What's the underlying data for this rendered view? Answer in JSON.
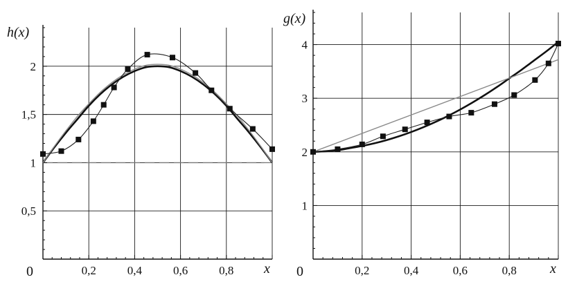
{
  "chart_data": [
    {
      "type": "line",
      "ylabel": "h(x)",
      "xlabel": "x",
      "origin_label": "0",
      "xlim": [
        0,
        1
      ],
      "ylim": [
        0,
        2.4
      ],
      "x_ticks": [
        "0,2",
        "0,4",
        "0,6",
        "0,8"
      ],
      "x_tick_values": [
        0.2,
        0.4,
        0.6,
        0.8
      ],
      "y_ticks": [
        "0,5",
        "1",
        "1,5",
        "2"
      ],
      "y_tick_values": [
        0.5,
        1,
        1.5,
        2
      ],
      "grid": true,
      "reference_line": {
        "y": 1,
        "style": "dashed"
      },
      "series": [
        {
          "style": "thick-black",
          "x": [
            0,
            0.05,
            0.1,
            0.15,
            0.2,
            0.25,
            0.3,
            0.35,
            0.4,
            0.45,
            0.5,
            0.55,
            0.6,
            0.65,
            0.7,
            0.75,
            0.8,
            0.85,
            0.9,
            0.95,
            1
          ],
          "values": [
            1.0,
            1.16,
            1.31,
            1.45,
            1.59,
            1.71,
            1.81,
            1.89,
            1.95,
            1.99,
            2.0,
            1.99,
            1.95,
            1.89,
            1.81,
            1.71,
            1.59,
            1.45,
            1.31,
            1.16,
            1.0
          ]
        },
        {
          "style": "thin-gray",
          "x": [
            0,
            0.05,
            0.1,
            0.15,
            0.2,
            0.25,
            0.3,
            0.35,
            0.4,
            0.45,
            0.5,
            0.55,
            0.6,
            0.65,
            0.7,
            0.75,
            0.8,
            0.85,
            0.9,
            0.95,
            1
          ],
          "values": [
            1.0,
            1.17,
            1.33,
            1.48,
            1.61,
            1.73,
            1.83,
            1.91,
            1.97,
            2.01,
            2.02,
            2.01,
            1.97,
            1.91,
            1.83,
            1.73,
            1.61,
            1.48,
            1.33,
            1.17,
            1.0
          ]
        },
        {
          "style": "thin-black-markers",
          "x": [
            0.0,
            0.08,
            0.155,
            0.22,
            0.265,
            0.31,
            0.37,
            0.455,
            0.565,
            0.665,
            0.735,
            0.815,
            0.915,
            1.0
          ],
          "values": [
            1.09,
            1.12,
            1.24,
            1.43,
            1.6,
            1.78,
            1.97,
            2.12,
            2.09,
            1.93,
            1.75,
            1.56,
            1.35,
            1.14
          ]
        }
      ]
    },
    {
      "type": "line",
      "ylabel": "g(x)",
      "xlabel": "x",
      "origin_label": "0",
      "xlim": [
        0,
        1
      ],
      "ylim": [
        0,
        4.6
      ],
      "x_ticks": [
        "0,2",
        "0,4",
        "0,6",
        "0,8"
      ],
      "x_tick_values": [
        0.2,
        0.4,
        0.6,
        0.8
      ],
      "y_ticks": [
        "1",
        "2",
        "3",
        "4"
      ],
      "y_tick_values": [
        1,
        2,
        3,
        4
      ],
      "grid": true,
      "series": [
        {
          "style": "thick-black",
          "x": [
            0,
            0.05,
            0.1,
            0.15,
            0.2,
            0.25,
            0.3,
            0.35,
            0.4,
            0.45,
            0.5,
            0.55,
            0.6,
            0.65,
            0.7,
            0.75,
            0.8,
            0.85,
            0.9,
            0.95,
            1
          ],
          "values": [
            2.0,
            2.01,
            2.03,
            2.07,
            2.11,
            2.16,
            2.22,
            2.29,
            2.37,
            2.46,
            2.56,
            2.67,
            2.79,
            2.92,
            3.06,
            3.21,
            3.37,
            3.53,
            3.7,
            3.87,
            4.05
          ]
        },
        {
          "style": "thin-gray",
          "x": [
            0,
            1
          ],
          "values": [
            2.0,
            3.72
          ]
        },
        {
          "style": "thin-black-markers",
          "x": [
            0.0,
            0.1,
            0.2,
            0.285,
            0.375,
            0.465,
            0.555,
            0.645,
            0.74,
            0.82,
            0.905,
            0.96,
            1.0
          ],
          "values": [
            2.0,
            2.05,
            2.14,
            2.29,
            2.42,
            2.55,
            2.66,
            2.73,
            2.89,
            3.06,
            3.34,
            3.65,
            4.02
          ]
        }
      ]
    }
  ]
}
